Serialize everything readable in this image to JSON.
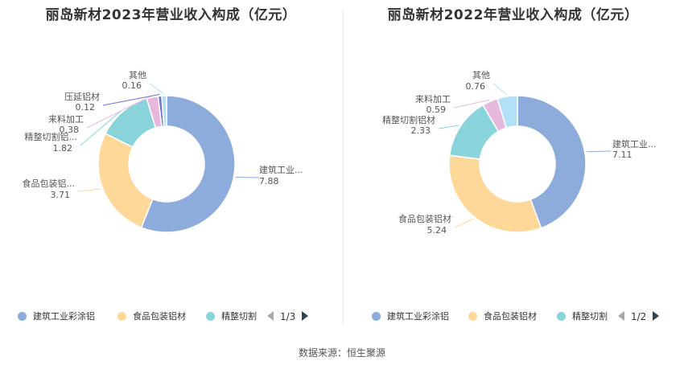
{
  "source": "数据来源：恒生聚源",
  "chart_data": [
    {
      "type": "pie",
      "title": "丽岛新材2023年营业收入构成（亿元）",
      "slices": [
        {
          "name": "建筑工业彩涂铝",
          "label": "建筑工业...",
          "value": 7.88,
          "value_label": "7.88",
          "color": "#8eacdb"
        },
        {
          "name": "食品包装铝材",
          "label": "食品包装铝...",
          "value": 3.71,
          "value_label": "3.71",
          "color": "#fdd898"
        },
        {
          "name": "精整切割",
          "label": "精整切割铝...",
          "value": 1.82,
          "value_label": "1.82",
          "color": "#89d4da"
        },
        {
          "name": "来料加工",
          "label": "来料加工",
          "value": 0.38,
          "value_label": "0.38",
          "color": "#e6b9dc"
        },
        {
          "name": "压延铝材",
          "label": "压延铝材",
          "value": 0.12,
          "value_label": "0.12",
          "color": "#6f6fd6"
        },
        {
          "name": "其他",
          "label": "其他",
          "value": 0.16,
          "value_label": "0.16",
          "color": "#b2e1f7"
        }
      ],
      "legend": {
        "items": [
          {
            "label": "建筑工业彩涂铝",
            "color": "#8eacdb"
          },
          {
            "label": "食品包装铝材",
            "color": "#fdd898"
          },
          {
            "label": "精整切割",
            "color": "#89d4da"
          }
        ],
        "page": "1/3"
      }
    },
    {
      "type": "pie",
      "title": "丽岛新材2022年营业收入构成（亿元）",
      "slices": [
        {
          "name": "建筑工业彩涂铝",
          "label": "建筑工业...",
          "value": 7.11,
          "value_label": "7.11",
          "color": "#8eacdb"
        },
        {
          "name": "食品包装铝材",
          "label": "食品包装铝材",
          "value": 5.24,
          "value_label": "5.24",
          "color": "#fdd898"
        },
        {
          "name": "精整切割",
          "label": "精整切割铝材",
          "value": 2.33,
          "value_label": "2.33",
          "color": "#89d4da"
        },
        {
          "name": "来料加工",
          "label": "来料加工",
          "value": 0.59,
          "value_label": "0.59",
          "color": "#e6b9dc"
        },
        {
          "name": "其他",
          "label": "其他",
          "value": 0.76,
          "value_label": "0.76",
          "color": "#b2e1f7"
        }
      ],
      "legend": {
        "items": [
          {
            "label": "建筑工业彩涂铝",
            "color": "#8eacdb"
          },
          {
            "label": "食品包装铝材",
            "color": "#fdd898"
          },
          {
            "label": "精整切割",
            "color": "#89d4da"
          }
        ],
        "page": "1/2"
      }
    }
  ]
}
